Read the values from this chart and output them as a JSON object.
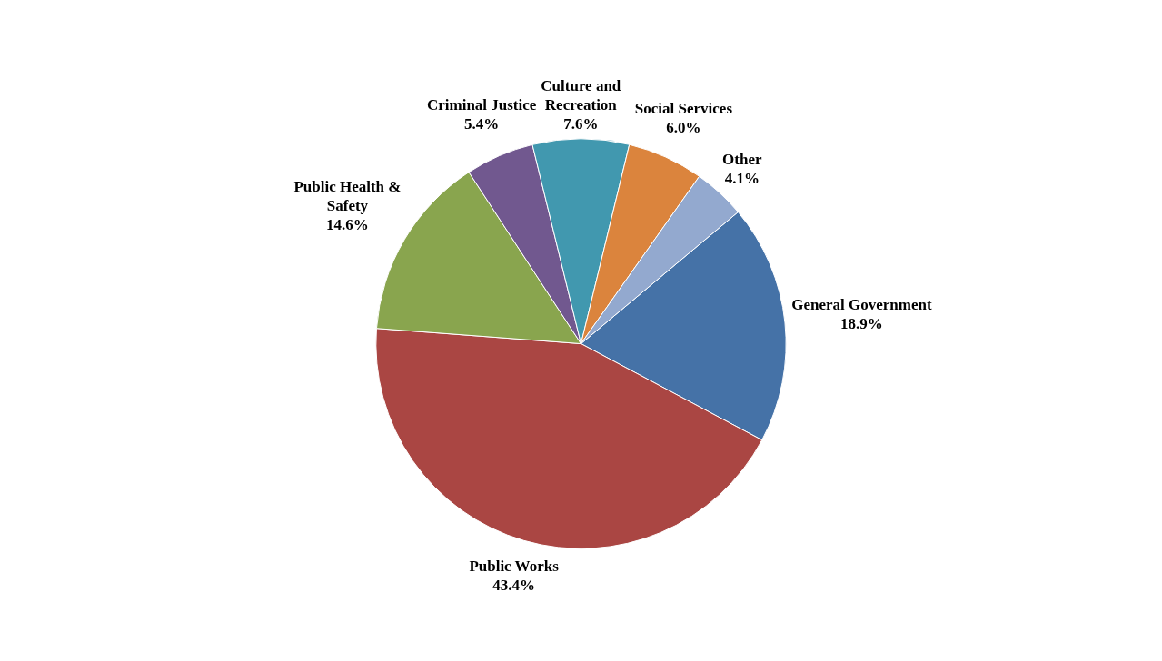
{
  "chart_data": {
    "type": "pie",
    "categories": [
      "General Government",
      "Public Works",
      "Public Health &\nSafety",
      "Criminal Justice",
      "Culture and\nRecreation",
      "Social Services",
      "Other"
    ],
    "values": [
      18.9,
      43.4,
      14.6,
      5.4,
      7.6,
      6.0,
      4.1
    ],
    "value_labels": [
      "18.9%",
      "43.4%",
      "14.6%",
      "5.4%",
      "7.6%",
      "6.0%",
      "4.1%"
    ],
    "colors": [
      "#4572a7",
      "#aa4643",
      "#89a54e",
      "#71588f",
      "#4198af",
      "#db843d",
      "#93a9cf"
    ],
    "legend": false
  }
}
